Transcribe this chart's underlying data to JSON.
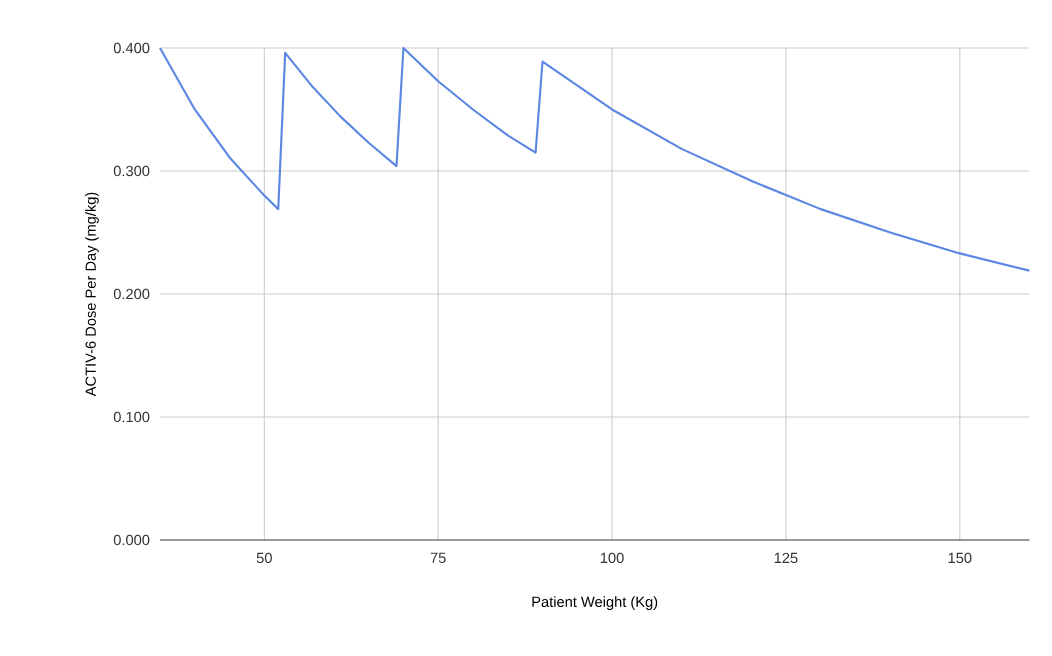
{
  "chart_data": {
    "type": "line",
    "xlabel": "Patient Weight (Kg)",
    "ylabel": "ACTIV-6 Dose Per Day (mg/kg)",
    "x": [
      35,
      40,
      45,
      50,
      52,
      53,
      57,
      61,
      65,
      69,
      70,
      75,
      80,
      85,
      89,
      90,
      100,
      110,
      120,
      130,
      140,
      150,
      160
    ],
    "series": [
      {
        "color": "#5b87e2",
        "values": [
          0.4,
          0.35,
          0.311,
          0.28,
          0.269,
          0.396,
          0.368,
          0.344,
          0.323,
          0.304,
          0.4,
          0.373,
          0.35,
          0.329,
          0.315,
          0.389,
          0.35,
          0.318,
          0.292,
          0.269,
          0.25,
          0.233,
          0.219
        ]
      }
    ],
    "xlim": [
      35,
      160
    ],
    "ylim": [
      0,
      0.4
    ],
    "xticks": [
      50,
      75,
      100,
      125,
      150
    ],
    "yticks": [
      {
        "value": 0,
        "label": "0.000"
      },
      {
        "value": 0.1,
        "label": "0.100"
      },
      {
        "value": 0.2,
        "label": "0.200"
      },
      {
        "value": 0.3,
        "label": "0.300"
      },
      {
        "value": 0.4,
        "label": "0.400"
      }
    ],
    "grid": true,
    "marker": "none",
    "line_style": "solid"
  }
}
